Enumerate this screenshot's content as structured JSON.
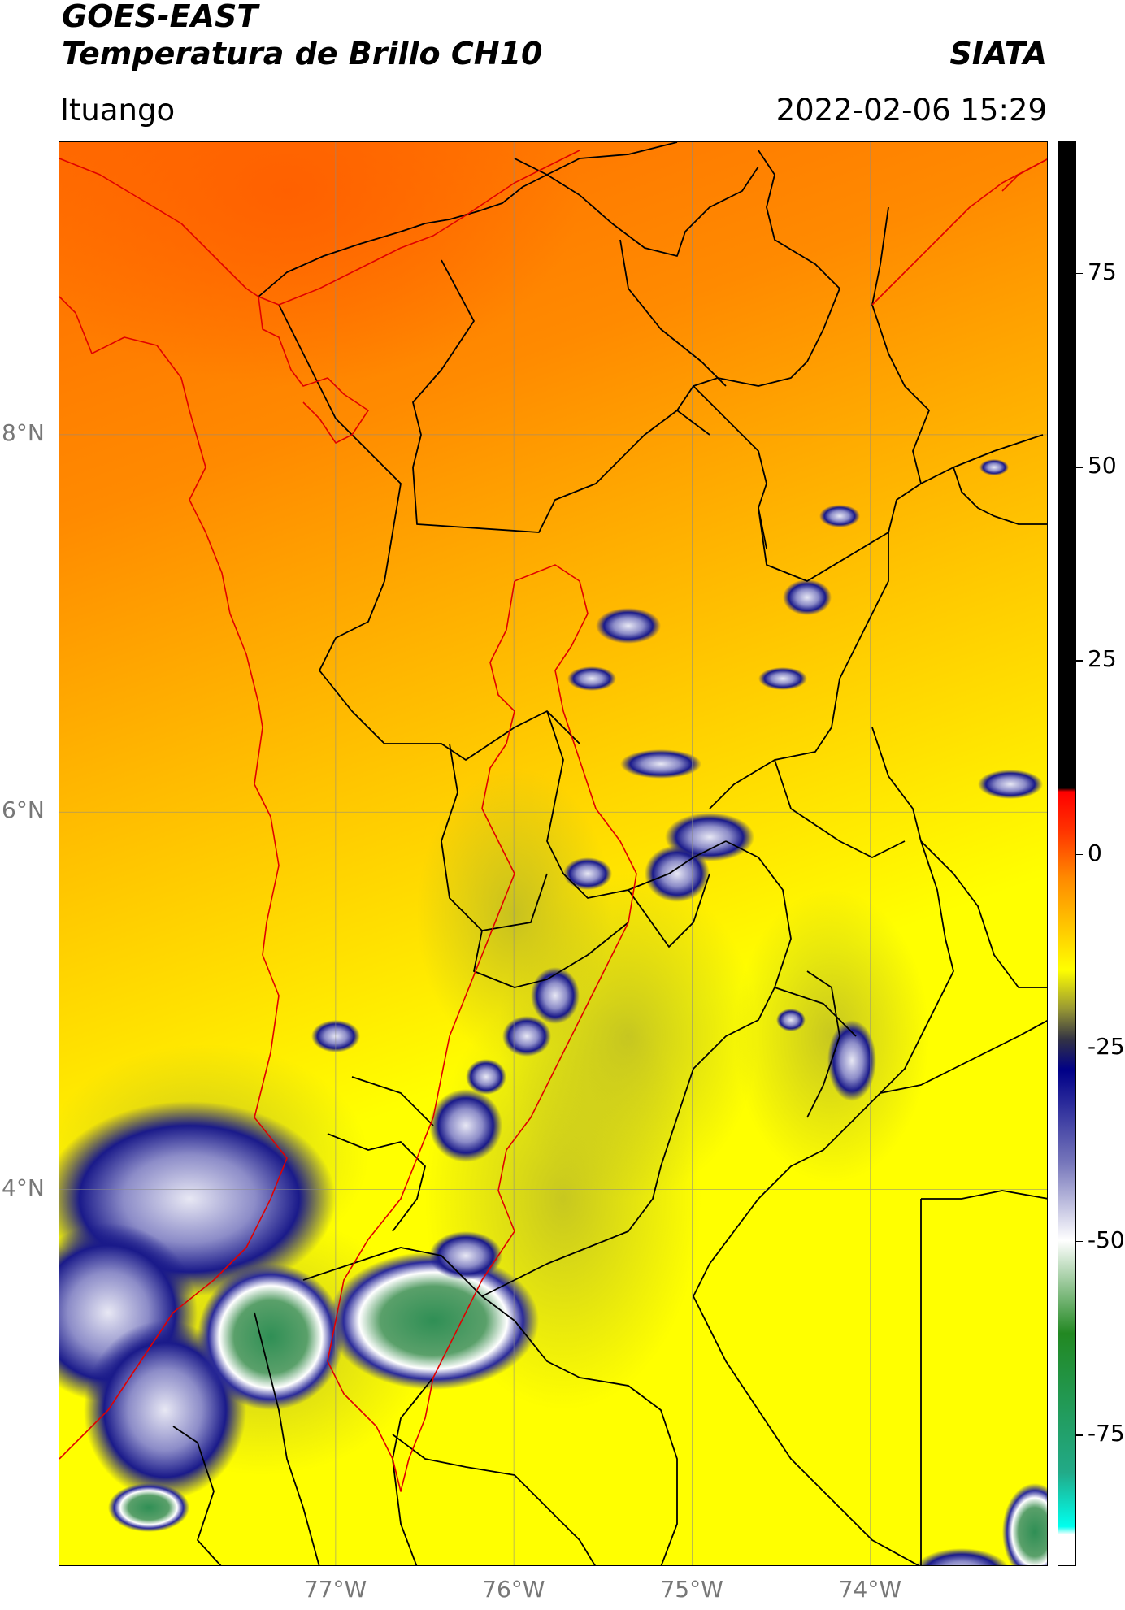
{
  "header": {
    "satellite": "GOES-EAST",
    "product": "Temperatura de Brillo CH10",
    "organization": "SIATA",
    "region": "Ituango",
    "timestamp": "2022-02-06 15:29"
  },
  "map": {
    "lon_range": [
      -78.55,
      -73.0
    ],
    "lat_range": [
      2.0,
      9.55
    ],
    "lon_ticks": [
      {
        "value": -77,
        "label": "77°W"
      },
      {
        "value": -76,
        "label": "76°W"
      },
      {
        "value": -75,
        "label": "75°W"
      },
      {
        "value": -74,
        "label": "74°W"
      }
    ],
    "lat_ticks": [
      {
        "value": 8,
        "label": "8°N"
      },
      {
        "value": 6,
        "label": "6°N"
      },
      {
        "value": 4,
        "label": "4°N"
      }
    ],
    "gridlines": true,
    "colors": {
      "border_country": "#e00000",
      "border_admin": "#000000",
      "basin_outline": "#e00000"
    }
  },
  "colorbar": {
    "range": [
      -92,
      92
    ],
    "ticks": [
      {
        "value": 75,
        "label": "75"
      },
      {
        "value": 50,
        "label": "50"
      },
      {
        "value": 25,
        "label": "25"
      },
      {
        "value": 0,
        "label": "0"
      },
      {
        "value": -25,
        "label": "-25"
      },
      {
        "value": -50,
        "label": "-50"
      },
      {
        "value": -75,
        "label": "-75"
      }
    ],
    "stops": [
      {
        "value": 92,
        "color": "#000000"
      },
      {
        "value": 8.5,
        "color": "#000000"
      },
      {
        "value": 8,
        "color": "#ff0000"
      },
      {
        "value": 3,
        "color": "#ff3300"
      },
      {
        "value": -3,
        "color": "#ff8800"
      },
      {
        "value": -10,
        "color": "#ffcc00"
      },
      {
        "value": -15,
        "color": "#ffff00"
      },
      {
        "value": -20,
        "color": "#999933"
      },
      {
        "value": -24,
        "color": "#333344"
      },
      {
        "value": -28,
        "color": "#000088"
      },
      {
        "value": -40,
        "color": "#7777bb"
      },
      {
        "value": -50,
        "color": "#ffffff"
      },
      {
        "value": -62,
        "color": "#228822"
      },
      {
        "value": -80,
        "color": "#22aa88"
      },
      {
        "value": -87,
        "color": "#00ffee"
      },
      {
        "value": -88,
        "color": "#ffffff"
      },
      {
        "value": -92,
        "color": "#ffffff"
      }
    ]
  }
}
